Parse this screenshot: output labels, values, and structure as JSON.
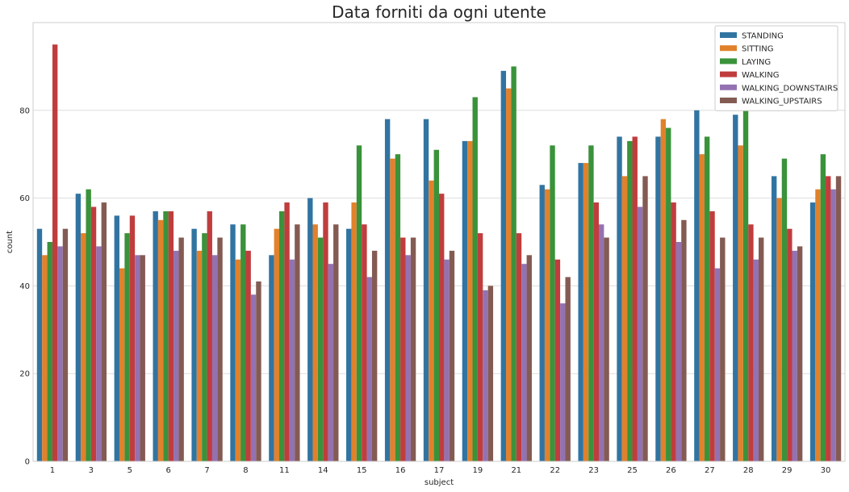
{
  "chart_data": {
    "type": "bar",
    "title": "Data forniti da ogni utente",
    "xlabel": "subject",
    "ylabel": "count",
    "ylim": [
      0,
      100
    ],
    "yticks": [
      0,
      20,
      40,
      60,
      80
    ],
    "grid": "horizontal",
    "legend_position": "top-right",
    "categories": [
      "1",
      "3",
      "5",
      "6",
      "7",
      "8",
      "11",
      "14",
      "15",
      "16",
      "17",
      "19",
      "21",
      "22",
      "23",
      "25",
      "26",
      "27",
      "28",
      "29",
      "30"
    ],
    "series": [
      {
        "name": "STANDING",
        "color": "#3274a1",
        "values": [
          53,
          61,
          56,
          57,
          53,
          54,
          47,
          60,
          53,
          78,
          78,
          73,
          89,
          63,
          68,
          74,
          74,
          80,
          79,
          65,
          59
        ]
      },
      {
        "name": "SITTING",
        "color": "#e1812c",
        "values": [
          47,
          52,
          44,
          55,
          48,
          46,
          53,
          54,
          59,
          69,
          64,
          73,
          85,
          62,
          68,
          65,
          78,
          70,
          72,
          60,
          62
        ]
      },
      {
        "name": "LAYING",
        "color": "#3a923a",
        "values": [
          50,
          62,
          52,
          57,
          52,
          54,
          57,
          51,
          72,
          70,
          71,
          83,
          90,
          72,
          72,
          73,
          76,
          74,
          80,
          69,
          70
        ]
      },
      {
        "name": "WALKING",
        "color": "#c03d3e",
        "values": [
          95,
          58,
          56,
          57,
          57,
          48,
          59,
          59,
          54,
          51,
          61,
          52,
          52,
          46,
          59,
          74,
          59,
          57,
          54,
          53,
          65
        ]
      },
      {
        "name": "WALKING_DOWNSTAIRS",
        "color": "#9372b2",
        "values": [
          49,
          49,
          47,
          48,
          47,
          38,
          46,
          45,
          42,
          47,
          46,
          39,
          45,
          36,
          54,
          58,
          50,
          44,
          46,
          48,
          62
        ]
      },
      {
        "name": "WALKING_UPSTAIRS",
        "color": "#845b53",
        "values": [
          53,
          59,
          47,
          51,
          51,
          41,
          54,
          54,
          48,
          51,
          48,
          40,
          47,
          42,
          51,
          65,
          55,
          51,
          51,
          49,
          65
        ]
      }
    ]
  }
}
